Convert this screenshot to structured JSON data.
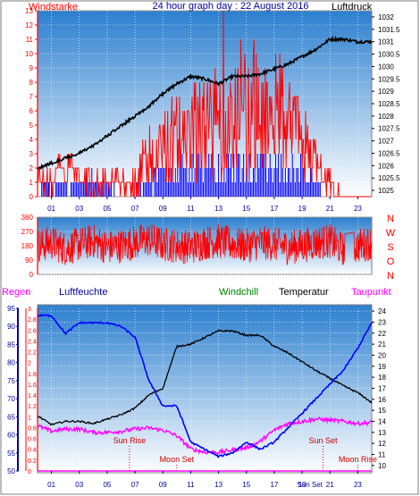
{
  "title": "24 hour graph day : 22 August 2016",
  "colors": {
    "frame_border": "#7f7f7f",
    "grad_top": "#2b7fcf",
    "grad_bottom": "#ffffff",
    "wind": "#ff0000",
    "gust": "#0000ff",
    "pressure": "#000000",
    "humidity": "#0000ff",
    "temperature": "#000000",
    "dewpoint": "#ff00ff",
    "windchill": "#008000",
    "rain": "#ff00ff",
    "astro": "#cc0000",
    "axis_left": "#ff0000",
    "axis_blue": "#0000a0",
    "axis_right": "#000000",
    "title": "#0000a0"
  },
  "chart_data": [
    {
      "type": "line",
      "title": "24 hour graph day : 22 August 2016",
      "left_label": "Windstarke",
      "right_label": "Luftdruck",
      "x_ticks": [
        "01",
        "03",
        "05",
        "07",
        "09",
        "11",
        "13",
        "15",
        "17",
        "19",
        "21",
        "23"
      ],
      "y_left": {
        "min": 0,
        "max": 13,
        "ticks": [
          "0",
          "1",
          "2",
          "3",
          "4",
          "5",
          "6",
          "7",
          "8",
          "9",
          "10",
          "11",
          "12",
          "13"
        ]
      },
      "y_right": {
        "min": 1024.75,
        "max": 1032.25,
        "ticks": [
          "1025",
          "1025.5",
          "1026",
          "1026.5",
          "1027",
          "1027.5",
          "1028",
          "1028.5",
          "1029",
          "1029.5",
          "1030",
          "1030.5",
          "1031",
          "1031.5",
          "1032"
        ]
      },
      "grid": true,
      "series": [
        {
          "key": "wind",
          "axis": "left",
          "color": "#ff0000",
          "x": [
            0,
            1,
            2,
            3,
            4,
            5,
            6,
            7,
            8,
            9,
            10,
            11,
            12,
            13,
            14,
            15,
            16,
            17,
            18,
            19,
            20,
            21,
            22,
            23,
            24
          ],
          "values": [
            1,
            1,
            2,
            1,
            1,
            1,
            1,
            1,
            3,
            3,
            4,
            5,
            5,
            5,
            6,
            6,
            6,
            6,
            5,
            4,
            2,
            1,
            0,
            0,
            0
          ]
        },
        {
          "key": "gust",
          "axis": "left",
          "color": "#0000ff",
          "x": [
            0,
            1,
            2,
            3,
            4,
            5,
            6,
            7,
            8,
            9,
            10,
            11,
            12,
            13,
            14,
            15,
            16,
            17,
            18,
            19,
            20,
            21,
            22,
            23,
            24
          ],
          "values": [
            0.5,
            1,
            1,
            1,
            1,
            1,
            0,
            0.5,
            1,
            1.5,
            2,
            2,
            2,
            2,
            2,
            2,
            2,
            2,
            2,
            2,
            1,
            0,
            0,
            0,
            0
          ]
        },
        {
          "key": "pressure",
          "axis": "right",
          "color": "#000000",
          "x": [
            0,
            1,
            2,
            3,
            4,
            5,
            6,
            7,
            8,
            9,
            10,
            11,
            12,
            13,
            14,
            15,
            16,
            17,
            18,
            19,
            20,
            21,
            22,
            23,
            24
          ],
          "values": [
            1025.9,
            1026.1,
            1026.3,
            1026.5,
            1026.8,
            1027.2,
            1027.6,
            1028.0,
            1028.4,
            1028.9,
            1029.3,
            1029.6,
            1029.5,
            1029.3,
            1029.6,
            1029.6,
            1029.7,
            1029.9,
            1030.1,
            1030.4,
            1030.7,
            1031.1,
            1031.1,
            1031.0,
            1031.0
          ]
        }
      ]
    },
    {
      "type": "line",
      "title": "",
      "y_left": {
        "min": 0,
        "max": 360,
        "ticks": [
          "0",
          "90",
          "180",
          "270",
          "360"
        ]
      },
      "right_labels": [
        "N",
        "W",
        "S",
        "O",
        "N"
      ],
      "grid": true,
      "series": [
        {
          "key": "wind_direction",
          "axis": "left",
          "color": "#ff0000",
          "x": [
            0,
            1,
            2,
            3,
            4,
            5,
            6,
            7,
            8,
            9,
            10,
            11,
            12,
            13,
            14,
            15,
            16,
            17,
            18,
            19,
            20,
            21,
            22,
            23,
            24
          ],
          "values": [
            180,
            200,
            160,
            190,
            210,
            170,
            180,
            200,
            220,
            190,
            180,
            170,
            200,
            210,
            190,
            180,
            200,
            190,
            170,
            180,
            200,
            210,
            150,
            180,
            200
          ]
        }
      ]
    },
    {
      "type": "line",
      "title": "",
      "legend": [
        "Regen",
        "Luftfeuchte",
        "Windchill",
        "Temperatur",
        "Taupunkt"
      ],
      "x_ticks": [
        "01",
        "03",
        "05",
        "07",
        "09",
        "11",
        "13",
        "15",
        "17",
        "19",
        "21",
        "23"
      ],
      "y_humidity": {
        "min": 50,
        "max": 95,
        "ticks": [
          "50",
          "55",
          "60",
          "65",
          "70",
          "75",
          "80",
          "85",
          "90",
          "95"
        ]
      },
      "y_rain": {
        "min": 0,
        "max": 3,
        "ticks": [
          "0",
          "0.2",
          "0.4",
          "0.6",
          "0.8",
          "1",
          "1.2",
          "1.4",
          "1.6",
          "1.8",
          "2",
          "2.2",
          "2.4",
          "2.6",
          "2.8",
          "3"
        ]
      },
      "y_temp": {
        "min": 9.5,
        "max": 24.25,
        "ticks": [
          "10",
          "11",
          "12",
          "13",
          "14",
          "15",
          "16",
          "17",
          "18",
          "19",
          "20",
          "21",
          "22",
          "23",
          "24"
        ]
      },
      "annotations": [
        {
          "text": "Sun Rise",
          "x": 6.6
        },
        {
          "text": "Moon Set",
          "x": 10.0
        },
        {
          "text": "Sun Set",
          "x": 20.5
        },
        {
          "text": "Moon Rise",
          "x": 23.0
        }
      ],
      "bottom_labels": [
        "Sun Set",
        "Sun Set"
      ],
      "series": [
        {
          "key": "humidity",
          "axis": "humidity",
          "color": "#0000ff",
          "x": [
            0,
            1,
            2,
            3,
            4,
            5,
            6,
            7,
            8,
            9,
            10,
            11,
            12,
            13,
            14,
            15,
            16,
            17,
            18,
            19,
            20,
            21,
            22,
            23,
            24
          ],
          "values": [
            93,
            93,
            88,
            91,
            91,
            91,
            90,
            87,
            75,
            68,
            68,
            58,
            56,
            54,
            55,
            58,
            56,
            58,
            62,
            66,
            70,
            74,
            78,
            84,
            91
          ]
        },
        {
          "key": "temperature",
          "axis": "temp",
          "color": "#000000",
          "x": [
            0,
            1,
            2,
            3,
            4,
            5,
            6,
            7,
            8,
            9,
            10,
            11,
            12,
            13,
            14,
            15,
            16,
            17,
            18,
            19,
            20,
            21,
            22,
            23,
            24
          ],
          "values": [
            14.5,
            13.7,
            14.0,
            14.0,
            13.8,
            14.2,
            14.6,
            15.2,
            16.4,
            17.0,
            20.8,
            21.0,
            21.6,
            22.2,
            22.2,
            21.8,
            21.8,
            20.8,
            20.2,
            19.4,
            18.6,
            17.9,
            17.2,
            16.6,
            15.7
          ]
        },
        {
          "key": "dewpoint",
          "axis": "temp",
          "color": "#ff00ff",
          "x": [
            0,
            1,
            2,
            3,
            4,
            5,
            6,
            7,
            8,
            9,
            10,
            11,
            12,
            13,
            14,
            15,
            16,
            17,
            18,
            19,
            20,
            21,
            22,
            23,
            24
          ],
          "values": [
            13.6,
            13.1,
            13.3,
            13.3,
            13.0,
            13.0,
            13.1,
            13.3,
            13.4,
            13.2,
            12.7,
            11.5,
            11.2,
            11.2,
            11.4,
            11.6,
            12.2,
            13.2,
            13.8,
            14.0,
            14.2,
            14.1,
            14.0,
            13.8,
            13.9
          ]
        },
        {
          "key": "rain",
          "axis": "rain",
          "color": "#ff00ff",
          "x": [
            0,
            24
          ],
          "values": [
            0,
            0
          ]
        }
      ]
    }
  ]
}
